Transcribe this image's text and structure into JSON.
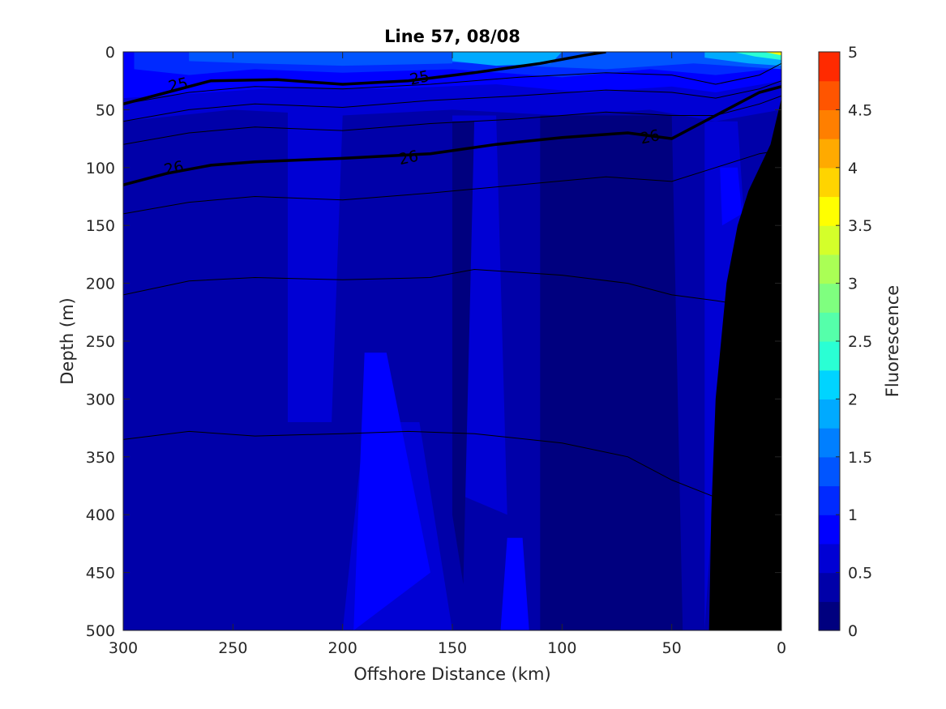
{
  "chart_data": {
    "type": "heatmap",
    "title": "Line 57, 08/08",
    "xlabel": "Offshore Distance (km)",
    "ylabel": "Depth (m)",
    "colorbar_label": "Fluorescence",
    "xlim": [
      300,
      0
    ],
    "ylim": [
      500,
      0
    ],
    "x_ticks": [
      300,
      250,
      200,
      150,
      100,
      50,
      0
    ],
    "y_ticks": [
      0,
      50,
      100,
      150,
      200,
      250,
      300,
      350,
      400,
      450,
      500
    ],
    "colorbar_range": [
      0,
      5
    ],
    "colorbar_levels": [
      {
        "lo": 0.0,
        "hi": 0.25,
        "color": "#00007f"
      },
      {
        "lo": 0.25,
        "hi": 0.5,
        "color": "#0000a9"
      },
      {
        "lo": 0.5,
        "hi": 0.75,
        "color": "#0000d4"
      },
      {
        "lo": 0.75,
        "hi": 1.0,
        "color": "#0000ff"
      },
      {
        "lo": 1.0,
        "hi": 1.25,
        "color": "#002aff"
      },
      {
        "lo": 1.25,
        "hi": 1.5,
        "color": "#0055ff"
      },
      {
        "lo": 1.5,
        "hi": 1.75,
        "color": "#007fff"
      },
      {
        "lo": 1.75,
        "hi": 2.0,
        "color": "#00aaff"
      },
      {
        "lo": 2.0,
        "hi": 2.25,
        "color": "#00d4ff"
      },
      {
        "lo": 2.25,
        "hi": 2.5,
        "color": "#2affd4"
      },
      {
        "lo": 2.5,
        "hi": 2.75,
        "color": "#55ffaa"
      },
      {
        "lo": 2.75,
        "hi": 3.0,
        "color": "#7fff7f"
      },
      {
        "lo": 3.0,
        "hi": 3.25,
        "color": "#aaff55"
      },
      {
        "lo": 3.25,
        "hi": 3.5,
        "color": "#d4ff2a"
      },
      {
        "lo": 3.5,
        "hi": 3.75,
        "color": "#ffff00"
      },
      {
        "lo": 3.75,
        "hi": 4.0,
        "color": "#ffd400"
      },
      {
        "lo": 4.0,
        "hi": 4.25,
        "color": "#ffaa00"
      },
      {
        "lo": 4.25,
        "hi": 4.5,
        "color": "#ff7f00"
      },
      {
        "lo": 4.5,
        "hi": 4.75,
        "color": "#ff5500"
      },
      {
        "lo": 4.75,
        "hi": 5.0,
        "color": "#ff2a00"
      }
    ],
    "colorbar_ticks": [
      "0",
      "0.5",
      "1",
      "1.5",
      "2",
      "2.5",
      "3",
      "3.5",
      "4",
      "4.5",
      "5"
    ],
    "colorbar_tick_values": [
      0,
      0.5,
      1,
      1.5,
      2,
      2.5,
      3,
      3.5,
      4,
      4.5,
      5
    ],
    "background_level_color": "#0000a9",
    "fluorescence_regions": [
      {
        "color": "#0000d4",
        "pts": [
          [
            300,
            0
          ],
          [
            0,
            0
          ],
          [
            0,
            50
          ],
          [
            30,
            60
          ],
          [
            60,
            50
          ],
          [
            100,
            55
          ],
          [
            150,
            50
          ],
          [
            200,
            55
          ],
          [
            250,
            50
          ],
          [
            300,
            60
          ]
        ]
      },
      {
        "color": "#0000ff",
        "pts": [
          [
            300,
            0
          ],
          [
            0,
            0
          ],
          [
            0,
            25
          ],
          [
            30,
            35
          ],
          [
            50,
            30
          ],
          [
            90,
            35
          ],
          [
            130,
            28
          ],
          [
            180,
            32
          ],
          [
            220,
            30
          ],
          [
            260,
            35
          ],
          [
            300,
            40
          ]
        ]
      },
      {
        "color": "#002aff",
        "pts": [
          [
            295,
            0
          ],
          [
            5,
            0
          ],
          [
            5,
            15
          ],
          [
            30,
            20
          ],
          [
            60,
            15
          ],
          [
            100,
            22
          ],
          [
            150,
            15
          ],
          [
            200,
            18
          ],
          [
            240,
            15
          ],
          [
            270,
            20
          ],
          [
            295,
            15
          ]
        ]
      },
      {
        "color": "#0055ff",
        "pts": [
          [
            270,
            0
          ],
          [
            150,
            0
          ],
          [
            150,
            10
          ],
          [
            200,
            12
          ],
          [
            240,
            10
          ],
          [
            270,
            8
          ]
        ]
      },
      {
        "color": "#0055ff",
        "pts": [
          [
            160,
            0
          ],
          [
            0,
            0
          ],
          [
            0,
            15
          ],
          [
            40,
            10
          ],
          [
            80,
            15
          ],
          [
            120,
            12
          ],
          [
            160,
            8
          ]
        ]
      },
      {
        "color": "#00aaff",
        "pts": [
          [
            150,
            0
          ],
          [
            100,
            0
          ],
          [
            105,
            10
          ],
          [
            130,
            12
          ],
          [
            150,
            8
          ]
        ]
      },
      {
        "color": "#00aaff",
        "pts": [
          [
            35,
            0
          ],
          [
            0,
            0
          ],
          [
            0,
            12
          ],
          [
            15,
            10
          ],
          [
            35,
            5
          ]
        ]
      },
      {
        "color": "#2affd4",
        "pts": [
          [
            22,
            0
          ],
          [
            0,
            0
          ],
          [
            0,
            7
          ],
          [
            12,
            4
          ]
        ]
      },
      {
        "color": "#ffff00",
        "pts": [
          [
            8,
            0
          ],
          [
            0,
            0
          ],
          [
            0,
            3
          ]
        ]
      },
      {
        "color": "#0000d4",
        "pts": [
          [
            225,
            50
          ],
          [
            200,
            55
          ],
          [
            205,
            320
          ],
          [
            225,
            320
          ]
        ]
      },
      {
        "color": "#0000d4",
        "pts": [
          [
            150,
            55
          ],
          [
            130,
            55
          ],
          [
            125,
            400
          ],
          [
            150,
            380
          ]
        ]
      },
      {
        "color": "#0000d4",
        "pts": [
          [
            190,
            320
          ],
          [
            165,
            320
          ],
          [
            150,
            500
          ],
          [
            200,
            500
          ]
        ]
      },
      {
        "color": "#0000d4",
        "pts": [
          [
            35,
            60
          ],
          [
            20,
            60
          ],
          [
            15,
            200
          ],
          [
            30,
            350
          ],
          [
            35,
            500
          ]
        ]
      },
      {
        "color": "#0000ff",
        "pts": [
          [
            190,
            260
          ],
          [
            180,
            260
          ],
          [
            160,
            450
          ],
          [
            195,
            500
          ]
        ]
      },
      {
        "color": "#0000ff",
        "pts": [
          [
            125,
            420
          ],
          [
            118,
            420
          ],
          [
            115,
            500
          ],
          [
            128,
            500
          ]
        ]
      },
      {
        "color": "#0000ff",
        "pts": [
          [
            28,
            100
          ],
          [
            20,
            100
          ],
          [
            18,
            140
          ],
          [
            27,
            150
          ]
        ]
      },
      {
        "color": "#00007f",
        "pts": [
          [
            150,
            60
          ],
          [
            140,
            60
          ],
          [
            145,
            460
          ],
          [
            150,
            400
          ]
        ]
      },
      {
        "color": "#00007f",
        "pts": [
          [
            110,
            55
          ],
          [
            50,
            55
          ],
          [
            45,
            500
          ],
          [
            110,
            500
          ]
        ]
      }
    ],
    "density_contours_thin": [
      [
        [
          300,
          45
        ],
        [
          270,
          35
        ],
        [
          240,
          30
        ],
        [
          200,
          32
        ],
        [
          160,
          28
        ],
        [
          120,
          22
        ],
        [
          80,
          18
        ],
        [
          50,
          20
        ],
        [
          30,
          28
        ],
        [
          10,
          20
        ],
        [
          0,
          10
        ]
      ],
      [
        [
          300,
          60
        ],
        [
          270,
          50
        ],
        [
          240,
          45
        ],
        [
          200,
          48
        ],
        [
          160,
          42
        ],
        [
          120,
          38
        ],
        [
          80,
          33
        ],
        [
          50,
          35
        ],
        [
          30,
          40
        ],
        [
          10,
          32
        ],
        [
          0,
          25
        ]
      ],
      [
        [
          300,
          80
        ],
        [
          270,
          70
        ],
        [
          240,
          65
        ],
        [
          200,
          68
        ],
        [
          160,
          62
        ],
        [
          120,
          58
        ],
        [
          80,
          52
        ],
        [
          50,
          55
        ],
        [
          30,
          55
        ],
        [
          10,
          45
        ],
        [
          0,
          38
        ]
      ],
      [
        [
          300,
          140
        ],
        [
          270,
          130
        ],
        [
          240,
          125
        ],
        [
          200,
          128
        ],
        [
          160,
          122
        ],
        [
          120,
          115
        ],
        [
          80,
          108
        ],
        [
          50,
          112
        ],
        [
          30,
          100
        ],
        [
          10,
          88
        ],
        [
          0,
          85
        ]
      ],
      [
        [
          300,
          210
        ],
        [
          270,
          198
        ],
        [
          240,
          195
        ],
        [
          200,
          197
        ],
        [
          160,
          195
        ],
        [
          140,
          188
        ],
        [
          100,
          193
        ],
        [
          70,
          200
        ],
        [
          50,
          210
        ],
        [
          30,
          215
        ],
        [
          20,
          218
        ]
      ],
      [
        [
          300,
          335
        ],
        [
          270,
          328
        ],
        [
          240,
          332
        ],
        [
          200,
          330
        ],
        [
          170,
          328
        ],
        [
          140,
          330
        ],
        [
          100,
          338
        ],
        [
          70,
          350
        ],
        [
          50,
          370
        ],
        [
          30,
          385
        ],
        [
          20,
          388
        ]
      ]
    ],
    "density_contours_bold": [
      {
        "level": "25",
        "pts": [
          [
            300,
            45
          ],
          [
            280,
            35
          ],
          [
            260,
            25
          ],
          [
            230,
            24
          ],
          [
            200,
            28
          ],
          [
            170,
            25
          ],
          [
            140,
            18
          ],
          [
            110,
            10
          ],
          [
            90,
            3
          ],
          [
            80,
            0
          ]
        ]
      },
      {
        "level": "26",
        "pts": [
          [
            300,
            115
          ],
          [
            280,
            105
          ],
          [
            260,
            98
          ],
          [
            240,
            95
          ],
          [
            200,
            92
          ],
          [
            160,
            88
          ],
          [
            130,
            80
          ],
          [
            100,
            74
          ],
          [
            70,
            70
          ],
          [
            50,
            75
          ],
          [
            30,
            55
          ],
          [
            10,
            35
          ],
          [
            0,
            30
          ]
        ]
      }
    ],
    "contour_labels": [
      {
        "text": "25",
        "x": 275,
        "y": 28
      },
      {
        "text": "25",
        "x": 165,
        "y": 22
      },
      {
        "text": "26",
        "x": 277,
        "y": 100
      },
      {
        "text": "26",
        "x": 170,
        "y": 91
      },
      {
        "text": "26",
        "x": 60,
        "y": 73
      }
    ],
    "bathymetry": {
      "color": "#000000",
      "pts": [
        [
          0,
          40
        ],
        [
          5,
          80
        ],
        [
          15,
          120
        ],
        [
          20,
          150
        ],
        [
          25,
          200
        ],
        [
          30,
          300
        ],
        [
          32,
          400
        ],
        [
          33,
          500
        ],
        [
          0,
          500
        ]
      ]
    }
  }
}
